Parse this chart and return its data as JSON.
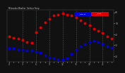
{
  "title_left": "Milwaukee Weather",
  "title_right": "Outdoor Temp",
  "bg_color": "#111111",
  "plot_bg_color": "#111111",
  "temp_color": "#dd0000",
  "dew_color": "#0000dd",
  "hours": [
    0,
    1,
    2,
    3,
    4,
    5,
    6,
    7,
    8,
    9,
    10,
    11,
    12,
    13,
    14,
    15,
    16,
    17,
    18,
    19,
    20,
    21,
    22,
    23
  ],
  "temp": [
    38,
    37,
    36,
    35,
    33,
    32,
    42,
    46,
    51,
    54,
    57,
    58,
    59,
    58,
    57,
    55,
    53,
    50,
    48,
    45,
    43,
    41,
    38,
    36
  ],
  "dew": [
    27,
    27,
    26,
    26,
    25,
    25,
    24,
    23,
    21,
    19,
    18,
    17,
    17,
    18,
    22,
    26,
    29,
    31,
    33,
    34,
    33,
    31,
    29,
    28
  ],
  "xlim": [
    -0.5,
    23.5
  ],
  "ylim": [
    15,
    62
  ],
  "yticks": [
    20,
    30,
    40,
    50,
    60
  ],
  "ytick_labels": [
    "20",
    "30",
    "40",
    "50",
    "60"
  ],
  "grid_hours": [
    3,
    6,
    9,
    12,
    15,
    18,
    21
  ],
  "marker_size": 1.8,
  "legend_label_dew": "Dew Pt",
  "legend_label_temp": "Temp",
  "tick_color": "#aaaaaa",
  "grid_color": "#555555",
  "spine_color": "#555555"
}
